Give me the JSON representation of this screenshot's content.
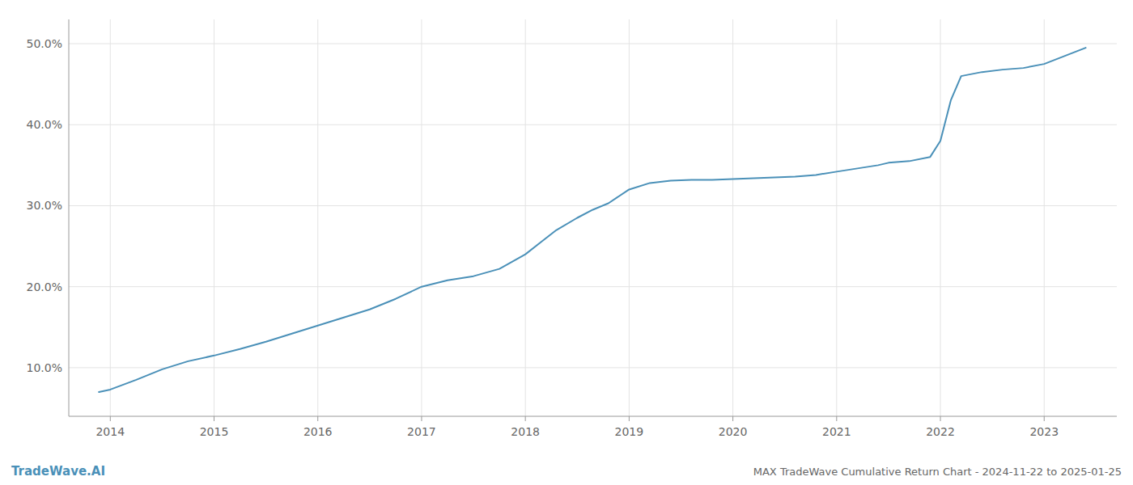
{
  "chart_data": {
    "type": "line",
    "title": "MAX TradeWave Cumulative Return Chart - 2024-11-22 to 2025-01-25",
    "annotations": [
      "TradeWave.AI"
    ],
    "color": "#4a90b8",
    "x": [
      2013.89,
      2014.0,
      2014.25,
      2014.5,
      2014.75,
      2015.0,
      2015.25,
      2015.5,
      2015.75,
      2016.0,
      2016.25,
      2016.5,
      2016.75,
      2017.0,
      2017.25,
      2017.5,
      2017.75,
      2018.0,
      2018.15,
      2018.3,
      2018.5,
      2018.65,
      2018.8,
      2019.0,
      2019.2,
      2019.4,
      2019.6,
      2019.8,
      2020.0,
      2020.2,
      2020.4,
      2020.6,
      2020.8,
      2021.0,
      2021.2,
      2021.4,
      2021.5,
      2021.7,
      2021.9,
      2022.0,
      2022.1,
      2022.2,
      2022.4,
      2022.6,
      2022.8,
      2023.0,
      2023.2,
      2023.4
    ],
    "values": [
      7.0,
      7.3,
      8.5,
      9.8,
      10.8,
      11.5,
      12.3,
      13.2,
      14.2,
      15.2,
      16.2,
      17.2,
      18.5,
      20.0,
      20.8,
      21.3,
      22.2,
      24.0,
      25.5,
      27.0,
      28.5,
      29.5,
      30.3,
      32.0,
      32.8,
      33.1,
      33.2,
      33.2,
      33.3,
      33.4,
      33.5,
      33.6,
      33.8,
      34.2,
      34.6,
      35.0,
      35.3,
      35.5,
      36.0,
      38.0,
      43.0,
      46.0,
      46.5,
      46.8,
      47.0,
      47.5,
      48.5,
      49.5
    ],
    "xlim": [
      2013.6,
      2023.7
    ],
    "ylim": [
      4.0,
      53.0
    ],
    "xticks": [
      2014,
      2015,
      2016,
      2017,
      2018,
      2019,
      2020,
      2021,
      2022,
      2023
    ],
    "yticks": [
      {
        "value": 10.0,
        "label": "10.0%"
      },
      {
        "value": 20.0,
        "label": "20.0%"
      },
      {
        "value": 30.0,
        "label": "30.0%"
      },
      {
        "value": 40.0,
        "label": "40.0%"
      },
      {
        "value": 50.0,
        "label": "50.0%"
      }
    ],
    "grid": true
  }
}
